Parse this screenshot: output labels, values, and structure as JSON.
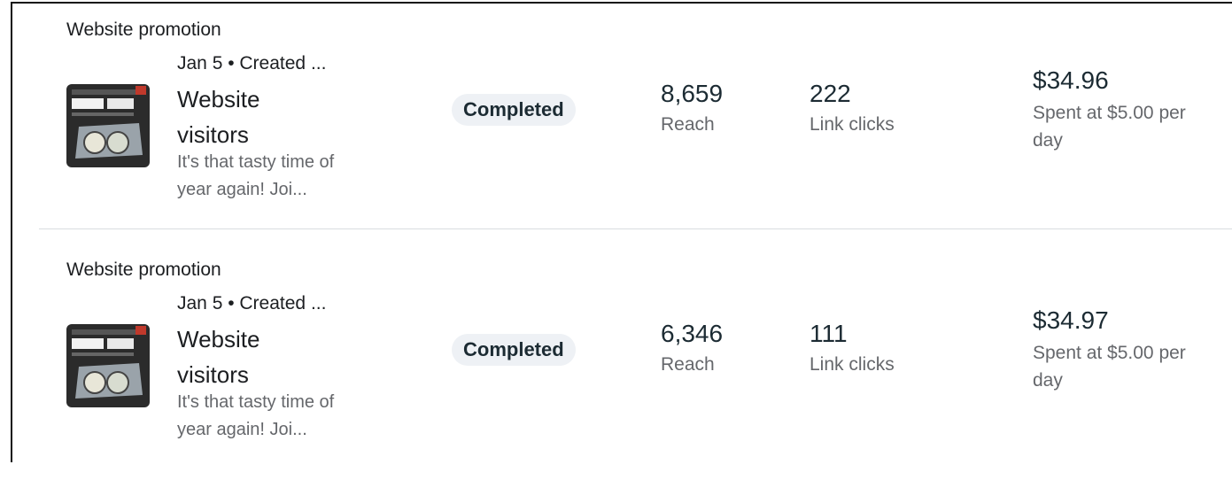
{
  "rows": [
    {
      "category": "Website promotion",
      "meta": "Jan 5 • Created ...",
      "title": "Website visitors",
      "description": "It's that tasty time of year again! Joi...",
      "status": "Completed",
      "reach": "8,659",
      "reach_label": "Reach",
      "clicks": "222",
      "clicks_label": "Link clicks",
      "spent": "$34.96",
      "spent_label": "Spent at $5.00 per day"
    },
    {
      "category": "Website promotion",
      "meta": "Jan 5 • Created ...",
      "title": "Website visitors",
      "description": "It's that tasty time of year again! Joi...",
      "status": "Completed",
      "reach": "6,346",
      "reach_label": "Reach",
      "clicks": "111",
      "clicks_label": "Link clicks",
      "spent": "$34.97",
      "spent_label": "Spent at $5.00 per day"
    }
  ]
}
